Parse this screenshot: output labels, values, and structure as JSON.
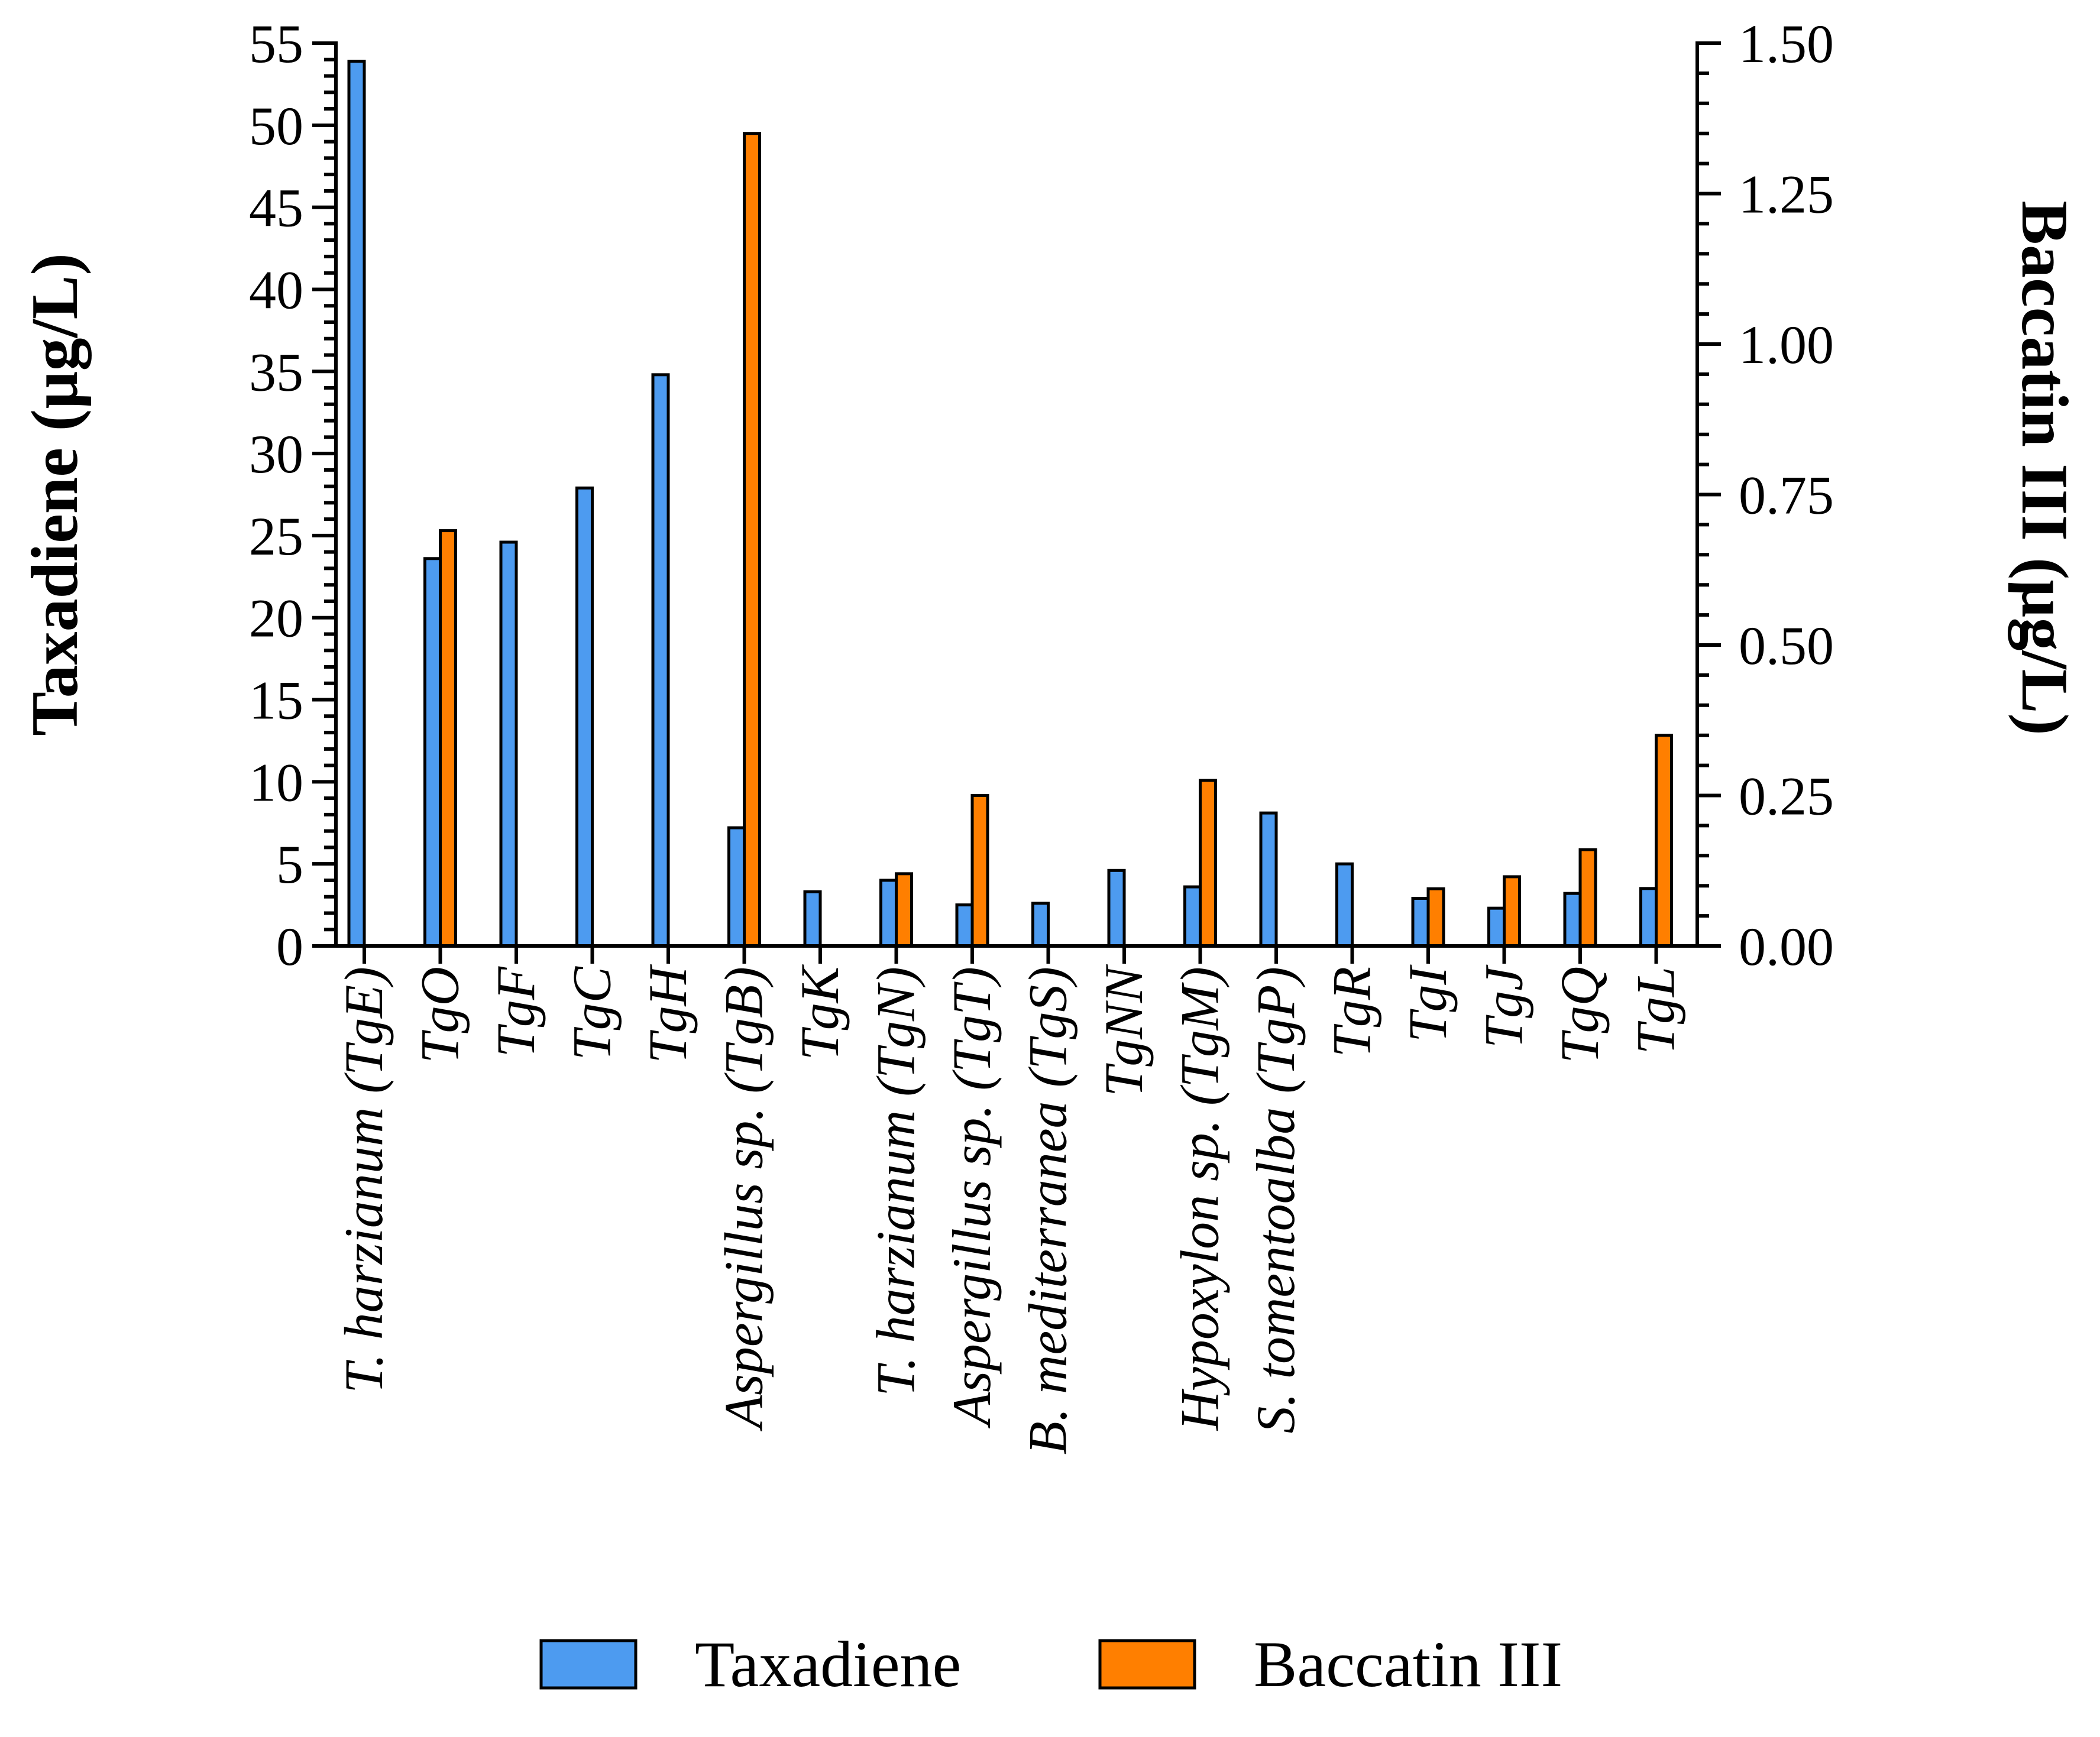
{
  "chart_data": {
    "type": "bar",
    "title": "",
    "xlabel": "",
    "ylabel": "Taxadiene (µg/L)",
    "y2label": "Baccatin III (µg/L)",
    "ylim": [
      0,
      55
    ],
    "y2lim": [
      0,
      1.5
    ],
    "yticks": [
      "0",
      "5",
      "10",
      "15",
      "20",
      "25",
      "30",
      "35",
      "40",
      "45",
      "50",
      "55"
    ],
    "y2ticks": [
      "0.00",
      "0.25",
      "0.50",
      "0.75",
      "1.00",
      "1.25",
      "1.50"
    ],
    "categories": [
      "T. harzianum (TgE)",
      "TgO",
      "TgF",
      "TgC",
      "TgH",
      "Aspergillus sp. (TgB)",
      "TgK",
      "T. harzianum (TgN)",
      "Aspergillus sp. (TgT)",
      "B. mediterranea (TgS)",
      "TgNN",
      "Hypoxylon sp. (TgM)",
      "S. tomentoalba (TgP)",
      "TgR",
      "TgI",
      "TgJ",
      "TgQ",
      "TgL"
    ],
    "series": [
      {
        "name": "Taxadiene",
        "axis": "left",
        "color": "#4d9bf0",
        "values": [
          53.9,
          23.6,
          24.6,
          27.9,
          34.8,
          7.2,
          3.3,
          4.0,
          2.5,
          2.6,
          4.6,
          3.6,
          8.1,
          5.0,
          2.9,
          2.3,
          3.2,
          3.5
        ]
      },
      {
        "name": "Baccatin III",
        "axis": "right",
        "color": "#ff7f00",
        "values": [
          0,
          0.69,
          0,
          0,
          0,
          1.35,
          0,
          0.12,
          0.25,
          0,
          0,
          0.275,
          0,
          0,
          0.095,
          0.115,
          0.16,
          0.35
        ]
      }
    ],
    "legend_position": "bottom-center"
  }
}
